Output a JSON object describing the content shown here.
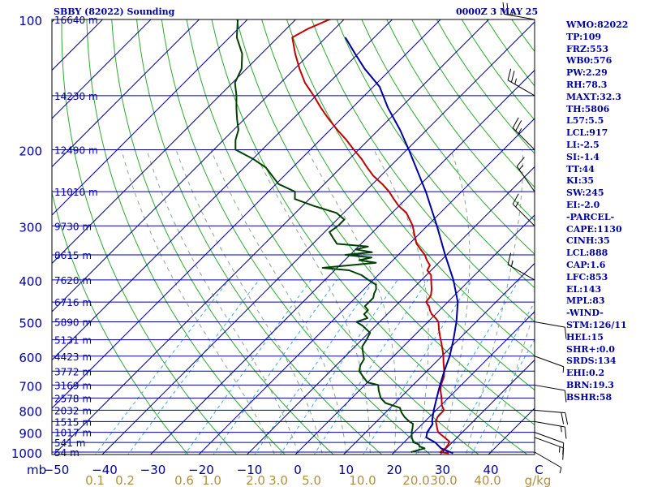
{
  "header": {
    "title": "SBBY (82022) Sounding",
    "timestamp": "0000Z  3 MAY 25"
  },
  "stats": [
    "WMO:82022",
    "TP:109",
    "FRZ:553",
    "WB0:576",
    "PW:2.29",
    "RH:78.3",
    "MAXT:32.3",
    "TH:5806",
    "L57:5.5",
    "LCL:917",
    "LI:-2.5",
    "SI:-1.4",
    "TT:44",
    "KI:35",
    "SW:245",
    "EI:-2.0",
    "-PARCEL-",
    "CAPE:1130",
    "CINH:35",
    "LCL:888",
    "CAP:1.6",
    "LFC:853",
    "EL:143",
    "MPL:83",
    "-WIND-",
    "STM:126/11",
    "HEL:15",
    "SHR+:0.0",
    "SRDS:134",
    "EHI:0.2",
    "BRN:19.3",
    "BSHR:58"
  ],
  "chart_data": {
    "type": "line",
    "title": "SBBY (82022) Sounding",
    "xlabel": "",
    "ylabel": "mb",
    "y_scale": "log",
    "y_reversed": true,
    "skew": true,
    "xlim": [
      -50,
      50
    ],
    "ylim": [
      1000,
      100
    ],
    "pressure_ticks": [
      100,
      200,
      300,
      400,
      500,
      600,
      700,
      800,
      900,
      1000
    ],
    "pressure_tick_labels": [
      "100",
      "200",
      "300",
      "400",
      "500",
      "600",
      "700",
      "800",
      "900",
      "1000"
    ],
    "temperature_ticks": [
      -50,
      -40,
      -30,
      -20,
      -10,
      0,
      10,
      20,
      30,
      40,
      50
    ],
    "temperature_tick_labels": [
      "−50",
      "−40",
      "−30",
      "−20",
      "−10",
      "0",
      "10",
      "20",
      "30",
      "40",
      "C"
    ],
    "mixing_ratio_labels": [
      "0.1",
      "0.2",
      "0.6",
      "1.0",
      "2.0",
      "3.0",
      "5.0",
      "10.0",
      "20.0",
      "30.0",
      "40.0",
      "g/kg"
    ],
    "height_labels": [
      {
        "p": 100,
        "label": "16640 m"
      },
      {
        "p": 150,
        "label": "14230 m"
      },
      {
        "p": 200,
        "label": "12490 m"
      },
      {
        "p": 250,
        "label": "11010 m"
      },
      {
        "p": 300,
        "label": "9730 m"
      },
      {
        "p": 350,
        "label": "8615 m"
      },
      {
        "p": 400,
        "label": "7620 m"
      },
      {
        "p": 450,
        "label": "6716 m"
      },
      {
        "p": 500,
        "label": "5890 m"
      },
      {
        "p": 550,
        "label": "5131 m"
      },
      {
        "p": 600,
        "label": "4423 m"
      },
      {
        "p": 650,
        "label": "3772 m"
      },
      {
        "p": 700,
        "label": "3169 m"
      },
      {
        "p": 750,
        "label": "2578 m"
      },
      {
        "p": 800,
        "label": "2032 m"
      },
      {
        "p": 850,
        "label": "1515 m"
      },
      {
        "p": 900,
        "label": "1017 m"
      },
      {
        "p": 950,
        "label": "541 m"
      },
      {
        "p": 1000,
        "label": "54 m"
      }
    ],
    "series": [
      {
        "name": "",
        "color": "#c00000",
        "points": [
          [
            1006,
            31.5
          ],
          [
            1000,
            29.5
          ],
          [
            980,
            29.8
          ],
          [
            960,
            29.6
          ],
          [
            945,
            29.2
          ],
          [
            925,
            27.4
          ],
          [
            900,
            25.0
          ],
          [
            880,
            23.9
          ],
          [
            850,
            22.3
          ],
          [
            830,
            21.7
          ],
          [
            800,
            21.6
          ],
          [
            780,
            20.2
          ],
          [
            750,
            18.6
          ],
          [
            720,
            16.8
          ],
          [
            700,
            15.8
          ],
          [
            670,
            14.7
          ],
          [
            650,
            13.6
          ],
          [
            620,
            11.6
          ],
          [
            600,
            10.3
          ],
          [
            580,
            8.8
          ],
          [
            560,
            7.2
          ],
          [
            540,
            5.5
          ],
          [
            520,
            3.8
          ],
          [
            500,
            2.2
          ],
          [
            490,
            0.8
          ],
          [
            480,
            -0.8
          ],
          [
            470,
            -2.0
          ],
          [
            460,
            -3.0
          ],
          [
            450,
            -4.5
          ],
          [
            435,
            -4.8
          ],
          [
            420,
            -6.0
          ],
          [
            410,
            -7.0
          ],
          [
            400,
            -8.0
          ],
          [
            390,
            -9.0
          ],
          [
            380,
            -10.8
          ],
          [
            370,
            -11.3
          ],
          [
            360,
            -13.0
          ],
          [
            350,
            -14.5
          ],
          [
            340,
            -16.5
          ],
          [
            330,
            -18.5
          ],
          [
            320,
            -20.0
          ],
          [
            310,
            -21.5
          ],
          [
            300,
            -23.0
          ],
          [
            280,
            -27.0
          ],
          [
            270,
            -30.0
          ],
          [
            260,
            -32.5
          ],
          [
            250,
            -35.0
          ],
          [
            240,
            -38.0
          ],
          [
            230,
            -41.5
          ],
          [
            220,
            -44.5
          ],
          [
            210,
            -47.5
          ],
          [
            200,
            -51.0
          ],
          [
            190,
            -54.5
          ],
          [
            180,
            -58.5
          ],
          [
            170,
            -62.5
          ],
          [
            160,
            -66.5
          ],
          [
            150,
            -70.5
          ],
          [
            140,
            -75.0
          ],
          [
            130,
            -79.0
          ],
          [
            120,
            -83.0
          ],
          [
            110,
            -87.0
          ],
          [
            105,
            -85.5
          ],
          [
            100,
            -83.0
          ],
          [
            95,
            -78.0
          ]
        ]
      },
      {
        "name": "",
        "color": "#004000",
        "points": [
          [
            1000,
            23.5
          ],
          [
            990,
            24.5
          ],
          [
            980,
            25.5
          ],
          [
            970,
            24.0
          ],
          [
            960,
            23.5
          ],
          [
            950,
            22.0
          ],
          [
            925,
            20.6
          ],
          [
            900,
            19.5
          ],
          [
            880,
            18.8
          ],
          [
            860,
            18.0
          ],
          [
            850,
            16.8
          ],
          [
            830,
            14.9
          ],
          [
            810,
            13.3
          ],
          [
            790,
            12.0
          ],
          [
            770,
            8.0
          ],
          [
            750,
            6.0
          ],
          [
            720,
            4.0
          ],
          [
            700,
            2.8
          ],
          [
            690,
            0.0
          ],
          [
            670,
            -2.0
          ],
          [
            650,
            -4.0
          ],
          [
            630,
            -5.0
          ],
          [
            610,
            -5.5
          ],
          [
            590,
            -7.0
          ],
          [
            570,
            -8.5
          ],
          [
            550,
            -9.0
          ],
          [
            530,
            -9.7
          ],
          [
            510,
            -12.8
          ],
          [
            500,
            -14.8
          ],
          [
            490,
            -13.3
          ],
          [
            480,
            -14.8
          ],
          [
            470,
            -14.8
          ],
          [
            460,
            -16.3
          ],
          [
            450,
            -16.3
          ],
          [
            440,
            -16.3
          ],
          [
            430,
            -17.0
          ],
          [
            420,
            -17.5
          ],
          [
            410,
            -18.5
          ],
          [
            400,
            -21.0
          ],
          [
            390,
            -23.4
          ],
          [
            380,
            -27.0
          ],
          [
            375,
            -33.0
          ],
          [
            370,
            -28.0
          ],
          [
            365,
            -23.0
          ],
          [
            360,
            -27.0
          ],
          [
            355,
            -25.0
          ],
          [
            350,
            -31.0
          ],
          [
            345,
            -26.0
          ],
          [
            340,
            -30.0
          ],
          [
            335,
            -28.0
          ],
          [
            330,
            -35.0
          ],
          [
            320,
            -37.0
          ],
          [
            310,
            -39.0
          ],
          [
            300,
            -38.5
          ],
          [
            290,
            -38.5
          ],
          [
            280,
            -41.5
          ],
          [
            270,
            -47.5
          ],
          [
            260,
            -53.0
          ],
          [
            250,
            -54.5
          ],
          [
            240,
            -59.5
          ],
          [
            220,
            -65.5
          ],
          [
            210,
            -70.0
          ],
          [
            200,
            -75.5
          ],
          [
            190,
            -77.5
          ],
          [
            180,
            -79.0
          ],
          [
            170,
            -81.5
          ],
          [
            160,
            -84.0
          ],
          [
            150,
            -86.5
          ],
          [
            140,
            -89.5
          ],
          [
            130,
            -91.0
          ],
          [
            120,
            -94.0
          ],
          [
            110,
            -98.5
          ],
          [
            100,
            -102.0
          ],
          [
            90,
            -105.0
          ]
        ]
      },
      {
        "name": "",
        "color": "#0000a0",
        "points": [
          [
            1006,
            32.4
          ],
          [
            980,
            28.9
          ],
          [
            950,
            26.5
          ],
          [
            925,
            23.6
          ],
          [
            900,
            22.7
          ],
          [
            880,
            22.4
          ],
          [
            860,
            22.1
          ],
          [
            850,
            21.5
          ],
          [
            800,
            19.5
          ],
          [
            750,
            17.6
          ],
          [
            700,
            15.6
          ],
          [
            650,
            13.6
          ],
          [
            600,
            11.6
          ],
          [
            550,
            9.0
          ],
          [
            500,
            5.9
          ],
          [
            450,
            2.1
          ],
          [
            400,
            -3.4
          ],
          [
            350,
            -10.3
          ],
          [
            300,
            -18.0
          ],
          [
            250,
            -27.4
          ],
          [
            200,
            -39.6
          ],
          [
            180,
            -45.5
          ],
          [
            160,
            -52.6
          ],
          [
            143,
            -58.7
          ],
          [
            130,
            -65.5
          ],
          [
            120,
            -70.6
          ],
          [
            110,
            -76.0
          ]
        ]
      }
    ],
    "dry_adiabats_theta_K": [
      250,
      260,
      270,
      280,
      290,
      300,
      310,
      320,
      330,
      340,
      350,
      360,
      370,
      380,
      390,
      400,
      410,
      420,
      430,
      440,
      450,
      460,
      470
    ],
    "moist_adiabats_thetaw_C": [
      -5,
      0,
      5,
      10,
      15,
      20,
      25,
      30,
      35,
      40
    ],
    "mixing_ratio_lines_gkg": [
      0.1,
      0.2,
      0.6,
      1.0,
      2.0,
      3.0,
      5.0,
      10.0,
      20.0,
      30.0,
      40.0
    ],
    "wind_barbs": [
      {
        "p": 1000,
        "dir": 120,
        "spd": 8
      },
      {
        "p": 925,
        "dir": 110,
        "spd": 15
      },
      {
        "p": 900,
        "dir": 110,
        "spd": 10
      },
      {
        "p": 850,
        "dir": 100,
        "spd": 18
      },
      {
        "p": 800,
        "dir": 95,
        "spd": 20
      },
      {
        "p": 700,
        "dir": 100,
        "spd": 10
      },
      {
        "p": 600,
        "dir": 110,
        "spd": 8
      },
      {
        "p": 500,
        "dir": 100,
        "spd": 10
      },
      {
        "p": 400,
        "dir": 300,
        "spd": 15
      },
      {
        "p": 300,
        "dir": 315,
        "spd": 15
      },
      {
        "p": 250,
        "dir": 325,
        "spd": 15
      },
      {
        "p": 200,
        "dir": 315,
        "spd": 25
      },
      {
        "p": 150,
        "dir": 300,
        "spd": 25
      },
      {
        "p": 100,
        "dir": 280,
        "spd": 25
      }
    ]
  }
}
